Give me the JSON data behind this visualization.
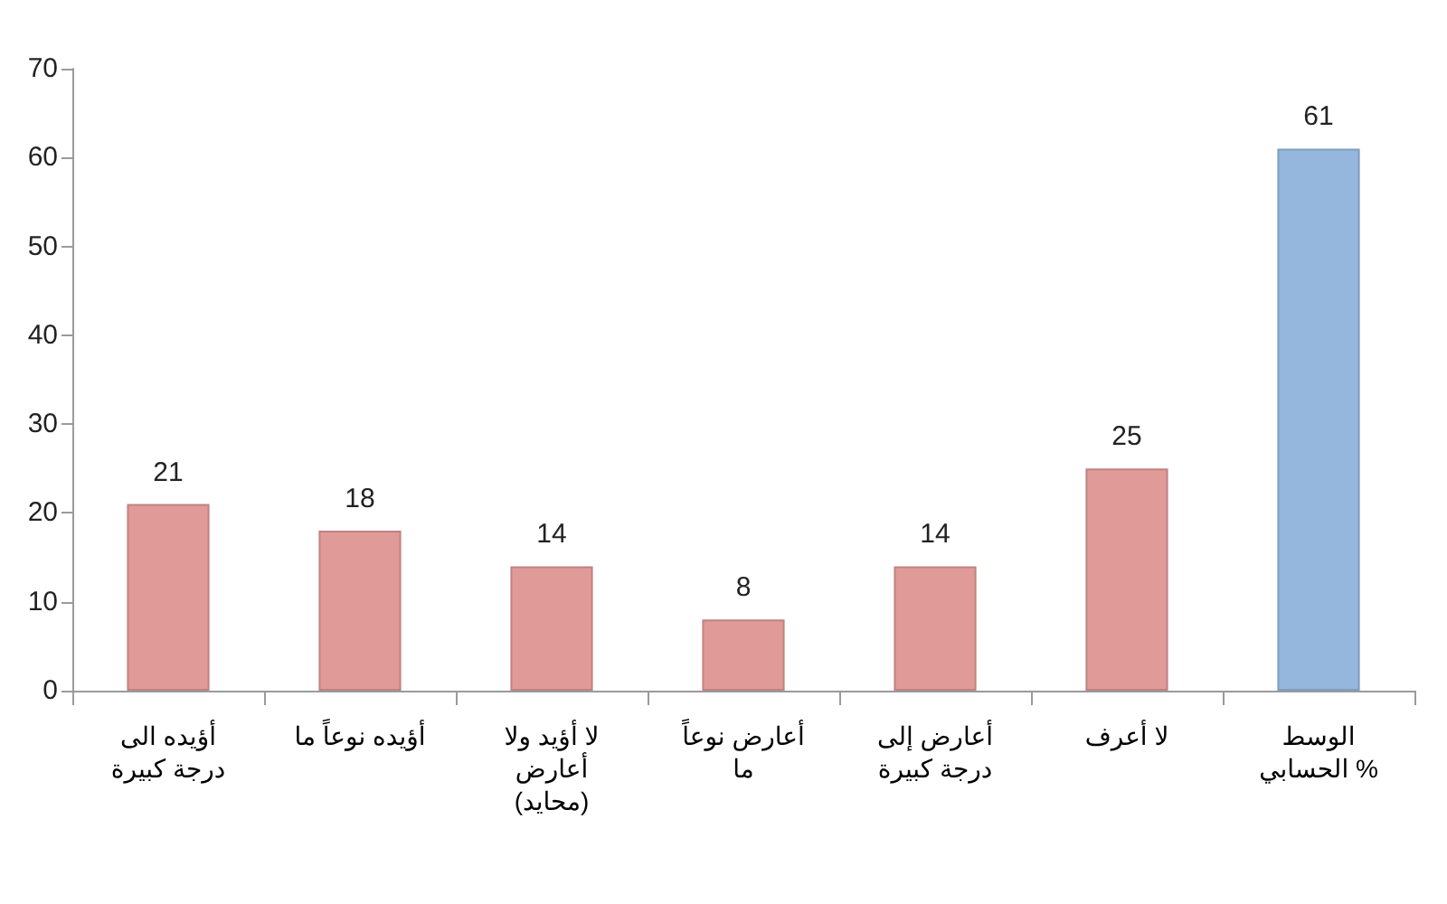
{
  "chart_data": {
    "type": "bar",
    "categories": [
      "أؤيده الى درجة كبيرة",
      "أؤيده نوعاً ما",
      "لا أؤيد ولا أعارض (محايد)",
      "أعارض نوعاً ما",
      "أعارض إلى درجة كبيرة",
      "لا أعرف",
      "الوسط الحسابي %"
    ],
    "values": [
      21,
      18,
      14,
      8,
      14,
      25,
      61
    ],
    "colors": [
      "#e09a98",
      "#e09a98",
      "#e09a98",
      "#e09a98",
      "#e09a98",
      "#e09a98",
      "#95b7de"
    ],
    "ylim": [
      0,
      70
    ],
    "yticks": [
      0,
      10,
      20,
      30,
      40,
      50,
      60,
      70
    ],
    "data_labels": true
  }
}
